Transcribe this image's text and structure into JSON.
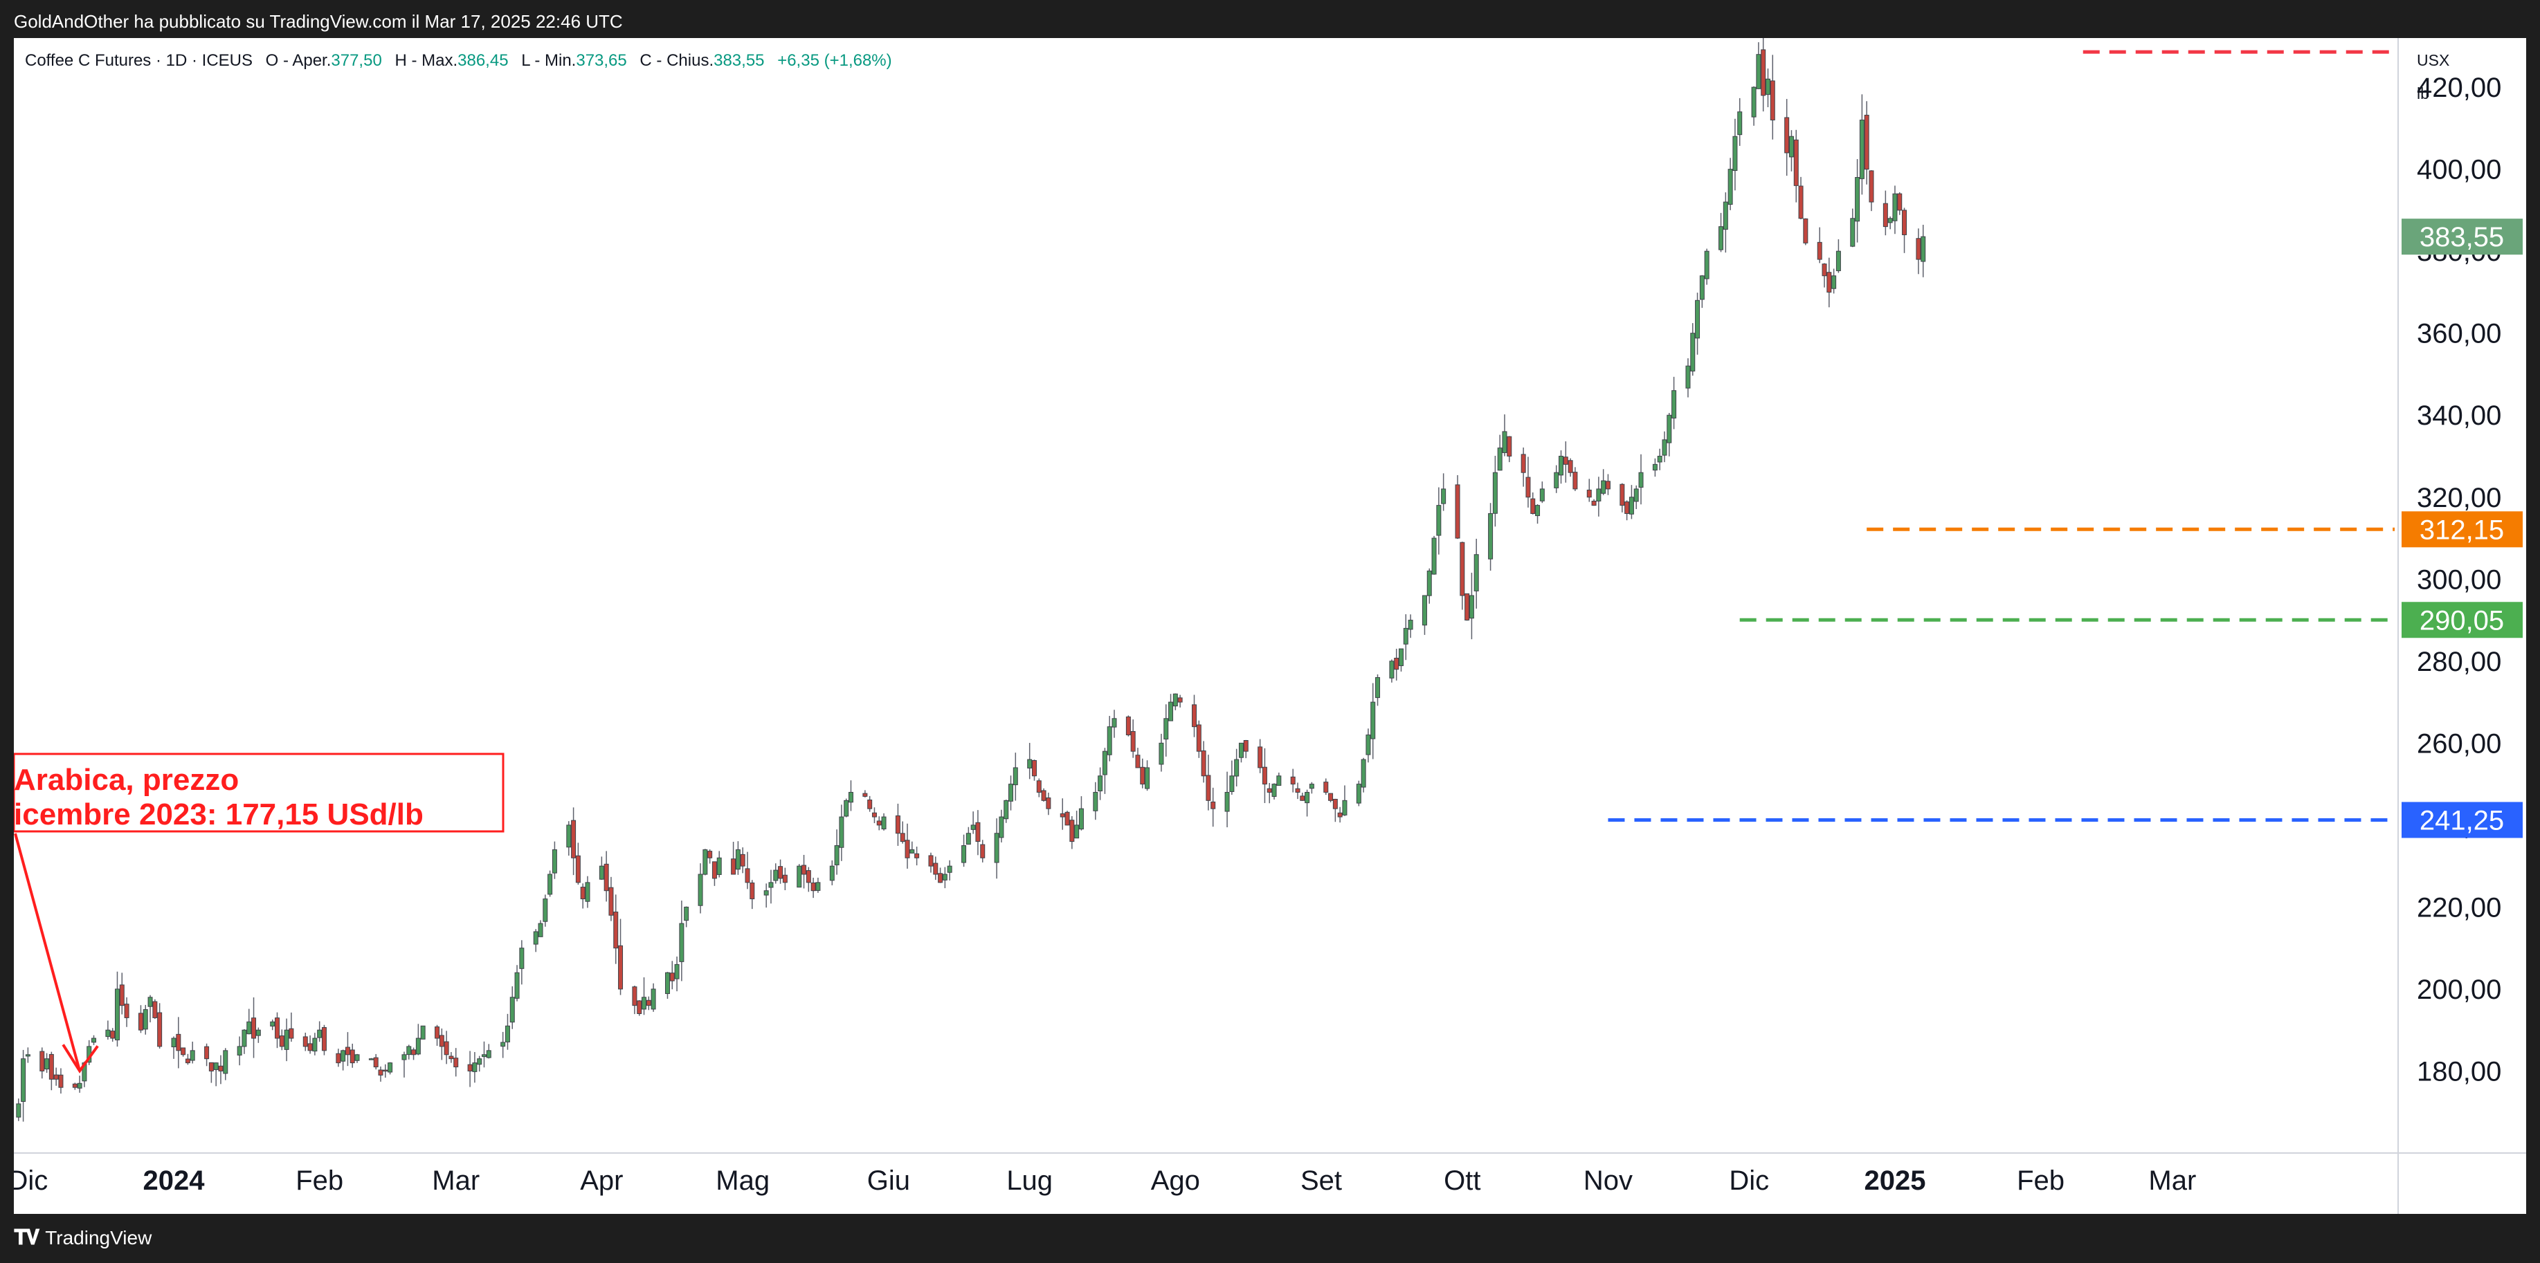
{
  "caption": "GoldAndOther ha pubblicato su TradingView.com il Mar 17, 2025 22:46 UTC",
  "footer": {
    "logo_icon": "tradingview-logo-icon",
    "brand": "TradingView"
  },
  "header": {
    "symbol": "Coffee C Futures · 1D · ICEUS",
    "open_label": "O - Aper.",
    "open": "377,50",
    "high_label": "H - Max.",
    "high": "386,45",
    "low_label": "L - Min.",
    "low": "373,65",
    "close_label": "C - Chius.",
    "close": "383,55",
    "change": "+6,35 (+1,68%)"
  },
  "colors": {
    "up": "#4c9a5e",
    "down": "#c2463e",
    "wick": "#5d606b",
    "red_line": "#f23645",
    "orange_line": "#f57c00",
    "green_line": "#4caf50",
    "blue_line": "#2962ff",
    "annotation": "#ff1e1e",
    "last_price_badge": "#6aa57a"
  },
  "chart_data": {
    "type": "candlestick",
    "currency": "USX",
    "unit": "lb",
    "ylim": [
      160,
      432
    ],
    "yticks": [
      180,
      200,
      220,
      240,
      260,
      280,
      300,
      320,
      340,
      360,
      380,
      400,
      420
    ],
    "ytick_labels": [
      "180,00",
      "200,00",
      "220,00",
      "240,00",
      "260,00",
      "280,00",
      "300,00",
      "320,00",
      "340,00",
      "360,00",
      "380,00",
      "400,00",
      "420,00"
    ],
    "xlim": [
      "2023-11-28",
      "2025-04-18"
    ],
    "xticks": [
      {
        "date": "2023-12-01",
        "label": "Dic",
        "bold": false
      },
      {
        "date": "2024-01-01",
        "label": "2024",
        "bold": true
      },
      {
        "date": "2024-02-01",
        "label": "Feb",
        "bold": false
      },
      {
        "date": "2024-03-01",
        "label": "Mar",
        "bold": false
      },
      {
        "date": "2024-04-01",
        "label": "Apr",
        "bold": false
      },
      {
        "date": "2024-05-01",
        "label": "Mag",
        "bold": false
      },
      {
        "date": "2024-06-01",
        "label": "Giu",
        "bold": false
      },
      {
        "date": "2024-07-01",
        "label": "Lug",
        "bold": false
      },
      {
        "date": "2024-08-01",
        "label": "Ago",
        "bold": false
      },
      {
        "date": "2024-09-01",
        "label": "Set",
        "bold": false
      },
      {
        "date": "2024-10-01",
        "label": "Ott",
        "bold": false
      },
      {
        "date": "2024-11-01",
        "label": "Nov",
        "bold": false
      },
      {
        "date": "2024-12-01",
        "label": "Dic",
        "bold": false
      },
      {
        "date": "2025-01-01",
        "label": "2025",
        "bold": true
      },
      {
        "date": "2025-02-01",
        "label": "Feb",
        "bold": false
      },
      {
        "date": "2025-03-01",
        "label": "Mar",
        "bold": false
      }
    ],
    "candles_start_date": "2023-11-29",
    "closes": [
      172,
      183,
      184,
      180,
      183,
      178,
      178,
      176,
      176,
      177,
      182,
      186,
      188,
      190,
      188,
      200,
      196,
      193,
      190,
      195,
      198,
      193,
      186,
      188,
      185,
      184,
      182,
      185,
      183,
      180,
      182,
      180,
      185,
      186,
      190,
      192,
      188,
      190,
      192,
      188,
      186,
      190,
      188,
      186,
      185,
      188,
      190,
      185,
      182,
      185,
      184,
      182,
      184,
      183,
      181,
      179,
      180,
      182,
      184,
      186,
      184,
      188,
      191,
      188,
      186,
      184,
      183,
      181,
      180,
      182,
      183,
      184,
      185,
      187,
      191,
      198,
      204,
      210,
      214,
      216,
      222,
      228,
      234,
      240,
      232,
      226,
      222,
      226,
      230,
      224,
      218,
      210,
      200,
      196,
      194,
      198,
      196,
      200,
      204,
      202,
      206,
      216,
      220,
      228,
      234,
      232,
      227,
      232,
      228,
      234,
      230,
      226,
      222,
      224,
      226,
      229,
      227,
      226,
      230,
      228,
      226,
      224,
      226,
      230,
      235,
      242,
      246,
      248,
      247,
      244,
      242,
      240,
      242,
      238,
      236,
      232,
      234,
      232,
      230,
      228,
      226,
      228,
      230,
      235,
      238,
      240,
      236,
      232,
      238,
      242,
      246,
      250,
      254,
      256,
      252,
      248,
      246,
      244,
      242,
      240,
      236,
      240,
      244,
      248,
      252,
      258,
      264,
      266,
      262,
      258,
      254,
      250,
      254,
      260,
      266,
      270,
      272,
      270,
      264,
      258,
      252,
      246,
      244,
      248,
      252,
      256,
      260,
      258,
      254,
      250,
      248,
      250,
      252,
      250,
      248,
      246,
      248,
      250,
      248,
      246,
      244,
      242,
      246,
      250,
      256,
      262,
      270,
      276,
      280,
      278,
      283,
      288,
      290,
      296,
      302,
      310,
      318,
      322,
      310,
      296,
      290,
      296,
      306,
      316,
      326,
      332,
      336,
      330,
      326,
      320,
      316,
      318,
      322,
      326,
      330,
      328,
      326,
      322,
      320,
      318,
      322,
      324,
      322,
      318,
      316,
      320,
      322,
      326,
      328,
      330,
      334,
      340,
      346,
      352,
      360,
      368,
      374,
      380,
      386,
      392,
      400,
      408,
      414,
      420,
      428,
      418,
      422,
      412,
      404,
      408,
      396,
      388,
      382,
      378,
      374,
      370,
      374,
      380,
      388,
      398,
      412,
      400,
      392,
      386,
      388,
      394,
      390,
      384,
      378,
      383.55
    ],
    "last_candle": {
      "open": 377.5,
      "high": 386.45,
      "low": 373.65,
      "close": 383.55
    },
    "levels": [
      {
        "value": 428.6,
        "color_key": "red_line",
        "start_date": "2025-02-10",
        "badge": ""
      },
      {
        "value": 312.15,
        "color_key": "orange_line",
        "start_date": "2024-12-26",
        "badge": "312,15"
      },
      {
        "value": 290.05,
        "color_key": "green_line",
        "start_date": "2024-11-29",
        "badge": "290,05"
      },
      {
        "value": 241.25,
        "color_key": "blue_line",
        "start_date": "2024-11-01",
        "badge": "241,25"
      }
    ],
    "last_price_badge": "383,55",
    "annotation": {
      "lines": [
        "Arabica, prezzo",
        "icembre 2023: 177,15 USd/lb"
      ],
      "arrow_target_date": "2023-12-12",
      "arrow_target_value": 178
    }
  }
}
